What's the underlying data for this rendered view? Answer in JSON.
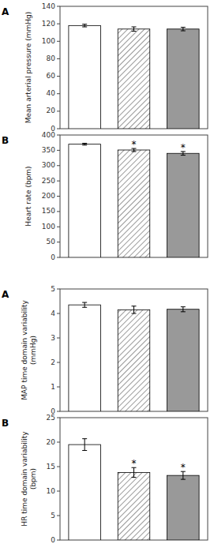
{
  "chart_data": [
    {
      "type": "bar",
      "title": "A",
      "ylabel": "Mean arterial pressure (mmHg)",
      "categories": [
        null,
        null,
        null
      ],
      "values": [
        118,
        114,
        114
      ],
      "errors": [
        1.5,
        2.5,
        2.0
      ],
      "significance": [
        false,
        false,
        false
      ],
      "significance_label": "*",
      "colors": [
        "#ffffff",
        "#ffffff",
        "#999999"
      ],
      "ylim": [
        0,
        140
      ],
      "yticks": [
        0,
        20,
        40,
        60,
        80,
        100,
        120,
        140
      ],
      "grid": false,
      "tick_labels": "y"
    },
    {
      "type": "bar",
      "title": "B",
      "ylabel": "Heart rate (bpm)",
      "categories": [
        null,
        null,
        null
      ],
      "values": [
        370,
        351,
        340
      ],
      "errors": [
        3.0,
        5.0,
        6.0
      ],
      "significance": [
        false,
        true,
        true
      ],
      "significance_label": "*",
      "colors": [
        "#ffffff",
        "#ffffff",
        "#999999"
      ],
      "ylim": [
        0,
        400
      ],
      "yticks": [
        0,
        50,
        100,
        150,
        200,
        250,
        300,
        350,
        400
      ],
      "grid": false,
      "tick_labels": "y"
    },
    {
      "type": "bar",
      "title": "A",
      "ylabel": "MAP time domain variability\n(mmHg)",
      "categories": [
        null,
        null,
        null
      ],
      "values": [
        4.35,
        4.15,
        4.17
      ],
      "errors": [
        0.1,
        0.15,
        0.1
      ],
      "significance": [
        false,
        false,
        false
      ],
      "significance_label": "*",
      "colors": [
        "#ffffff",
        "#ffffff",
        "#999999"
      ],
      "ylim": [
        0,
        5
      ],
      "yticks": [
        0,
        1,
        2,
        3,
        4,
        5
      ],
      "grid": false,
      "tick_labels": "y"
    },
    {
      "type": "bar",
      "title": "B",
      "ylabel": "HR time domain variability\n(bpm)",
      "categories": [
        null,
        null,
        null
      ],
      "values": [
        19.5,
        13.8,
        13.2
      ],
      "errors": [
        1.2,
        1.0,
        0.8
      ],
      "significance": [
        false,
        true,
        true
      ],
      "significance_label": "*",
      "colors": [
        "#ffffff",
        "#ffffff",
        "#999999"
      ],
      "ylim": [
        0,
        25
      ],
      "yticks": [
        0,
        5,
        10,
        15,
        20,
        25
      ],
      "grid": false,
      "tick_labels": "y"
    }
  ]
}
